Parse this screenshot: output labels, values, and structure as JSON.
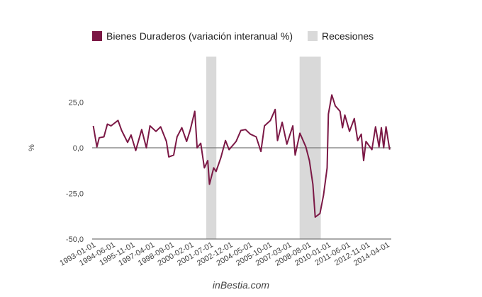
{
  "chart_data": {
    "type": "line",
    "title": "",
    "xlabel": "",
    "ylabel": "%",
    "ylim": [
      -50,
      37
    ],
    "grid": false,
    "legend_position": "top",
    "legend": [
      {
        "label": "Bienes Duraderos (variación interanual %)",
        "color": "#7b1845"
      },
      {
        "label": "Recesiones",
        "color": "#d9d9d9"
      }
    ],
    "y_ticks": [
      {
        "value": 25,
        "label": "25,0"
      },
      {
        "value": 0,
        "label": "0,0"
      },
      {
        "value": -25,
        "label": "-25,0"
      },
      {
        "value": -50,
        "label": "-50,0"
      }
    ],
    "x_ticks": [
      {
        "value": 1993.0,
        "label": "1993-01-01"
      },
      {
        "value": 1994.417,
        "label": "1994-06-01"
      },
      {
        "value": 1995.833,
        "label": "1995-11-01"
      },
      {
        "value": 1997.25,
        "label": "1997-04-01"
      },
      {
        "value": 1998.667,
        "label": "1998-09-01"
      },
      {
        "value": 2000.083,
        "label": "2000-02-01"
      },
      {
        "value": 2001.5,
        "label": "2001-07-01"
      },
      {
        "value": 2002.917,
        "label": "2002-12-01"
      },
      {
        "value": 2004.333,
        "label": "2004-05-01"
      },
      {
        "value": 2005.75,
        "label": "2005-10-01"
      },
      {
        "value": 2007.167,
        "label": "2007-03-01"
      },
      {
        "value": 2008.583,
        "label": "2008-08-01"
      },
      {
        "value": 2010.0,
        "label": "2010-01-01"
      },
      {
        "value": 2011.417,
        "label": "2011-06-01"
      },
      {
        "value": 2012.833,
        "label": "2012-11-01"
      },
      {
        "value": 2014.25,
        "label": "2014-04-01"
      }
    ],
    "recessions": [
      [
        2001.17,
        2001.9
      ],
      [
        2007.92,
        2009.45
      ]
    ],
    "series": [
      {
        "name": "Bienes Duraderos (variación interanual %)",
        "x": [
          1993.0,
          1993.26,
          1993.43,
          1993.77,
          1994.02,
          1994.28,
          1994.79,
          1995.05,
          1995.48,
          1995.73,
          1996.07,
          1996.5,
          1996.84,
          1997.1,
          1997.53,
          1997.87,
          1998.29,
          1998.46,
          1998.81,
          1999.06,
          1999.4,
          1999.75,
          2000.0,
          2000.34,
          2000.51,
          2000.77,
          2001.03,
          2001.28,
          2001.4,
          2001.71,
          2001.88,
          2002.22,
          2002.56,
          2002.82,
          2003.33,
          2003.67,
          2004.01,
          2004.36,
          2004.78,
          2005.12,
          2005.38,
          2005.81,
          2006.15,
          2006.32,
          2006.66,
          2007.0,
          2007.43,
          2007.6,
          2007.94,
          2008.37,
          2008.63,
          2008.88,
          2009.05,
          2009.39,
          2009.65,
          2009.91,
          2010.0,
          2010.25,
          2010.5,
          2010.84,
          2011.02,
          2011.19,
          2011.53,
          2011.87,
          2012.12,
          2012.38,
          2012.55,
          2012.72,
          2013.15,
          2013.41,
          2013.66,
          2013.83,
          2014.0,
          2014.17,
          2014.43
        ],
        "y": [
          12,
          0.5,
          5.5,
          6,
          13,
          12,
          15,
          9.5,
          3,
          7,
          -1.5,
          10,
          0,
          12,
          9,
          11.5,
          3.5,
          -5,
          -4,
          6,
          11,
          3.5,
          9.5,
          20,
          0,
          2.5,
          -11,
          -7,
          -20,
          -11,
          -13,
          -5.5,
          4,
          -1,
          3.5,
          9.5,
          10,
          7.5,
          6,
          -2,
          12,
          15,
          21,
          4,
          14,
          2,
          12,
          -4,
          8,
          0.5,
          -7,
          -20,
          -38,
          -36,
          -26,
          -11,
          18.5,
          29,
          23,
          20,
          11,
          18,
          9,
          16,
          4,
          7.5,
          -7,
          3.5,
          -1,
          11.5,
          0.5,
          11,
          0,
          11.5,
          -1
        ]
      }
    ]
  },
  "footer": {
    "credit": "inBestia.com"
  }
}
